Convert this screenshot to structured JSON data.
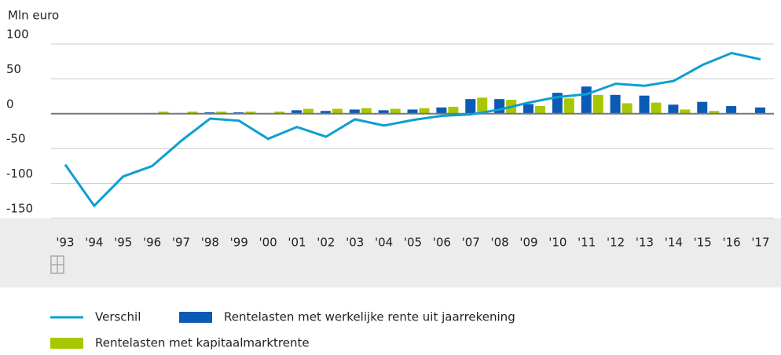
{
  "chart_data": {
    "type": "bar-line",
    "y_label": "Mln euro",
    "categories": [
      "'93",
      "'94",
      "'95",
      "'96",
      "'97",
      "'98",
      "'99",
      "'00",
      "'01",
      "'02",
      "'03",
      "'04",
      "'05",
      "'06",
      "'07",
      "'08",
      "'09",
      "'10",
      "'11",
      "'12",
      "'13",
      "'14",
      "'15",
      "'16",
      "'17"
    ],
    "series": [
      {
        "name": "Verschil",
        "type": "line",
        "color": "#0e9fd0",
        "values": [
          -73,
          -132,
          -90,
          -75,
          -39,
          -7,
          -10,
          -36,
          -19,
          -33,
          -8,
          -17,
          -9,
          -3,
          -1,
          6,
          16,
          24,
          28,
          43,
          40,
          47,
          70,
          87,
          78
        ]
      },
      {
        "name": "Rentelasten met werkelijke rente uit jaarrekening",
        "type": "bar",
        "color": "#0b5bb5",
        "values": [
          0,
          0,
          0,
          1,
          1,
          2,
          2,
          1,
          5,
          4,
          6,
          5,
          6,
          9,
          21,
          21,
          14,
          30,
          39,
          27,
          26,
          13,
          17,
          11,
          9
        ]
      },
      {
        "name": "Rentelasten met kapitaalmarktrente",
        "type": "bar",
        "color": "#a9c700",
        "values": [
          0,
          0,
          0,
          3,
          3,
          3,
          3,
          3,
          7,
          7,
          8,
          7,
          8,
          10,
          23,
          20,
          11,
          22,
          27,
          15,
          16,
          6,
          4,
          null,
          null
        ]
      }
    ],
    "ylim": [
      -150,
      100
    ],
    "yticks": [
      -150,
      -100,
      -50,
      0,
      50,
      100
    ],
    "grid": true
  }
}
